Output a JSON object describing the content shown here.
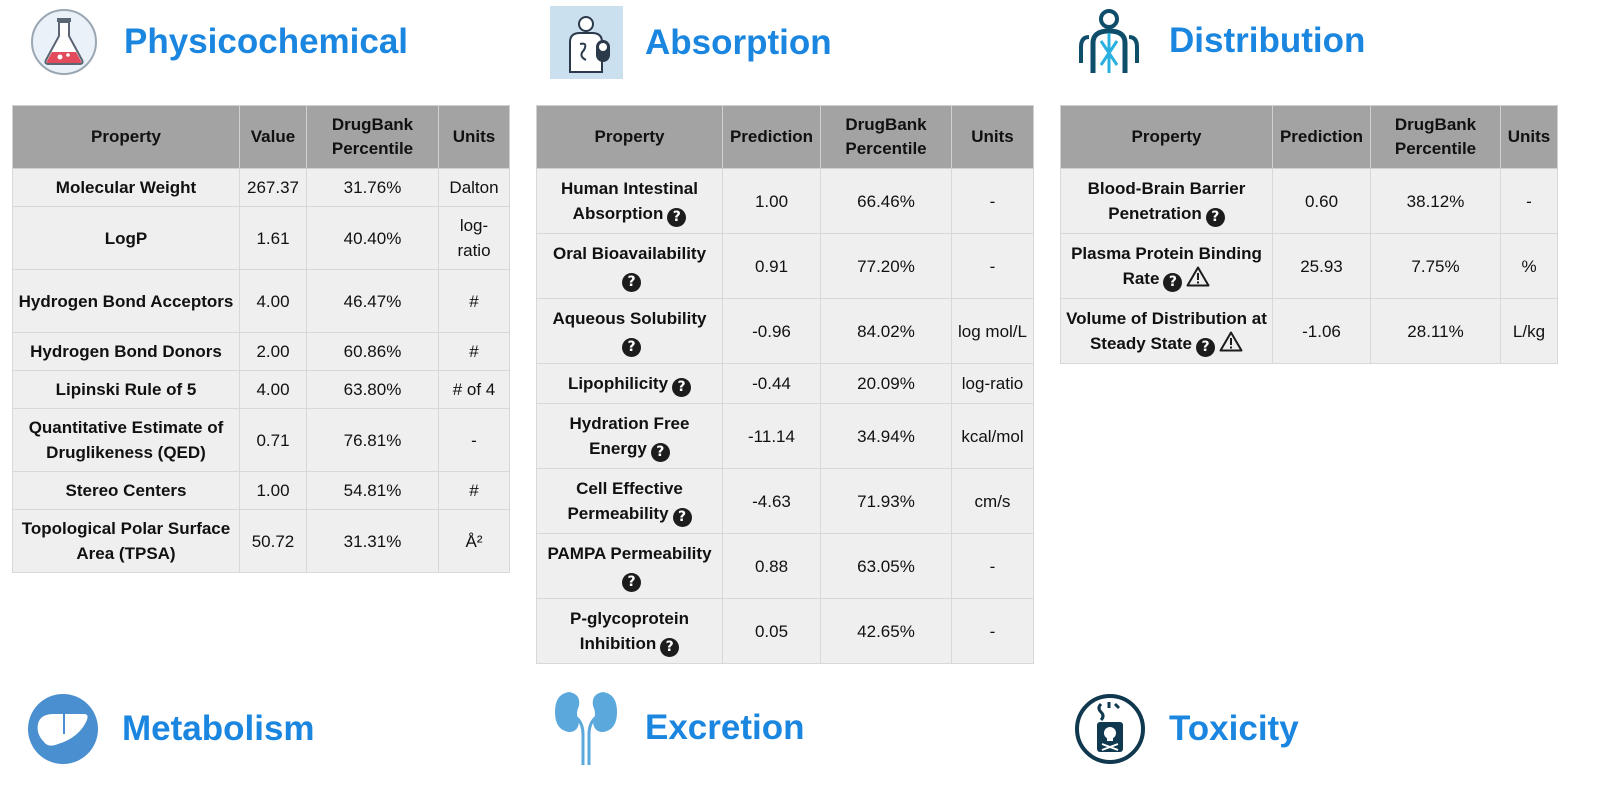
{
  "colors": {
    "accent": "#1a86e0",
    "header_bg": "#a3a3a3",
    "cell_bg": "#efefef"
  },
  "sections": {
    "physicochemical": {
      "title": "Physicochemical",
      "icon": "flask-icon"
    },
    "absorption": {
      "title": "Absorption",
      "icon": "absorption-body-icon"
    },
    "distribution": {
      "title": "Distribution",
      "icon": "circulation-body-icon"
    },
    "metabolism": {
      "title": "Metabolism",
      "icon": "liver-icon"
    },
    "excretion": {
      "title": "Excretion",
      "icon": "kidney-icon"
    },
    "toxicity": {
      "title": "Toxicity",
      "icon": "toxic-flask-icon"
    }
  },
  "physicochemical_table": {
    "headers": [
      "Property",
      "Value",
      "DrugBank Percentile",
      "Units"
    ],
    "rows": [
      {
        "property": "Molecular Weight",
        "value": "267.37",
        "percentile": "31.76%",
        "units": "Dalton"
      },
      {
        "property": "LogP",
        "value": "1.61",
        "percentile": "40.40%",
        "units": "log-ratio"
      },
      {
        "property": "Hydrogen Bond Acceptors",
        "value": "4.00",
        "percentile": "46.47%",
        "units": "#"
      },
      {
        "property": "Hydrogen Bond Donors",
        "value": "2.00",
        "percentile": "60.86%",
        "units": "#"
      },
      {
        "property": "Lipinski Rule of 5",
        "value": "4.00",
        "percentile": "63.80%",
        "units": "# of 4"
      },
      {
        "property": "Quantitative Estimate of Druglikeness (QED)",
        "value": "0.71",
        "percentile": "76.81%",
        "units": "-"
      },
      {
        "property": "Stereo Centers",
        "value": "1.00",
        "percentile": "54.81%",
        "units": "#"
      },
      {
        "property": "Topological Polar Surface Area (TPSA)",
        "value": "50.72",
        "percentile": "31.31%",
        "units": "Å²"
      }
    ]
  },
  "absorption_table": {
    "headers": [
      "Property",
      "Prediction",
      "DrugBank Percentile",
      "Units"
    ],
    "rows": [
      {
        "property": "Human Intestinal Absorption",
        "value": "1.00",
        "percentile": "66.46%",
        "units": "-"
      },
      {
        "property": "Oral Bioavailability",
        "value": "0.91",
        "percentile": "77.20%",
        "units": "-"
      },
      {
        "property": "Aqueous Solubility",
        "value": "-0.96",
        "percentile": "84.02%",
        "units": "log mol/L"
      },
      {
        "property": "Lipophilicity",
        "value": "-0.44",
        "percentile": "20.09%",
        "units": "log-ratio"
      },
      {
        "property": "Hydration Free Energy",
        "value": "-11.14",
        "percentile": "34.94%",
        "units": "kcal/mol"
      },
      {
        "property": "Cell Effective Permeability",
        "value": "-4.63",
        "percentile": "71.93%",
        "units": "cm/s"
      },
      {
        "property": "PAMPA Permeability",
        "value": "0.88",
        "percentile": "63.05%",
        "units": "-"
      },
      {
        "property": "P-glycoprotein Inhibition",
        "value": "0.05",
        "percentile": "42.65%",
        "units": "-"
      }
    ]
  },
  "distribution_table": {
    "headers": [
      "Property",
      "Prediction",
      "DrugBank Percentile",
      "Units"
    ],
    "rows": [
      {
        "property": "Blood-Brain Barrier Penetration",
        "value": "0.60",
        "percentile": "38.12%",
        "units": "-"
      },
      {
        "property": "Plasma Protein Binding Rate",
        "value": "25.93",
        "percentile": "7.75%",
        "units": "%"
      },
      {
        "property": "Volume of Distribution at Steady State",
        "value": "-1.06",
        "percentile": "28.11%",
        "units": "L/kg"
      }
    ]
  },
  "help_glyph": "?"
}
